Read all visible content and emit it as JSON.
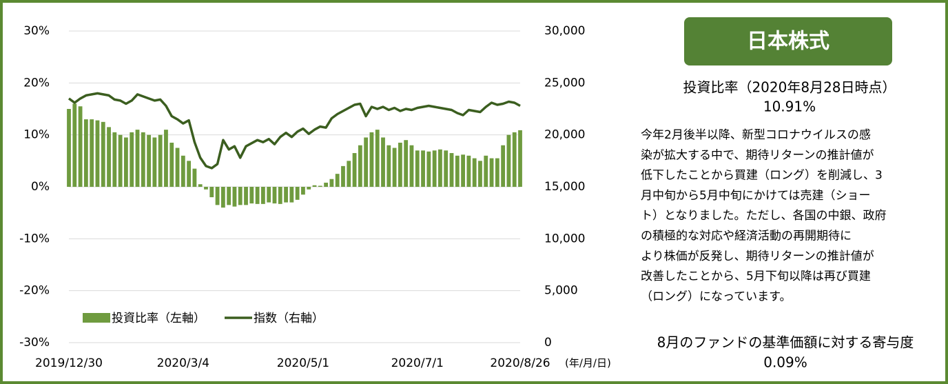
{
  "chart_data": {
    "type": "bar_line",
    "categories": [
      "2019/12/30",
      null,
      null,
      null,
      null,
      null,
      null,
      null,
      null,
      null,
      null,
      null,
      null,
      null,
      null,
      null,
      null,
      null,
      null,
      null,
      "2020/3/4",
      null,
      null,
      null,
      null,
      null,
      null,
      null,
      null,
      null,
      null,
      null,
      null,
      null,
      null,
      null,
      null,
      null,
      null,
      null,
      null,
      "2020/5/1",
      null,
      null,
      null,
      null,
      null,
      null,
      null,
      null,
      null,
      null,
      null,
      null,
      null,
      null,
      null,
      null,
      null,
      null,
      null,
      "2020/7/1",
      null,
      null,
      null,
      null,
      null,
      null,
      null,
      null,
      null,
      null,
      null,
      null,
      null,
      null,
      null,
      null,
      null,
      "2020/8/26"
    ],
    "x_label": "(年/月/日)",
    "series": [
      {
        "name": "投資比率（左軸）",
        "color": "#6f9b3f",
        "type": "bar",
        "axis": "y",
        "values": [
          15,
          16,
          15.5,
          13,
          13,
          12.8,
          12.5,
          11.5,
          10.5,
          10,
          9.5,
          10.5,
          11,
          10.5,
          10,
          9.5,
          10,
          11,
          8.5,
          7.5,
          6,
          5,
          3.5,
          0.5,
          -0.5,
          -2,
          -3.5,
          -4,
          -3.5,
          -3.8,
          -3.5,
          -3.5,
          -3.2,
          -3.3,
          -3.3,
          -3,
          -3.2,
          -3.3,
          -3,
          -3,
          -2.5,
          -1.5,
          -0.5,
          0.3,
          0.2,
          0.8,
          1.5,
          2.5,
          4,
          5,
          6.5,
          8,
          9.5,
          10.5,
          11,
          9.5,
          8,
          7.5,
          8.5,
          9,
          8,
          7,
          7,
          6.8,
          7,
          7.2,
          7,
          6.5,
          6,
          6.2,
          6,
          5.5,
          5,
          6,
          5.5,
          5.5,
          8,
          10,
          10.5,
          10.9
        ]
      },
      {
        "name": "指数（右軸）",
        "color": "#3b5e1f",
        "type": "line",
        "axis": "y2",
        "values": [
          23500,
          23100,
          23500,
          23800,
          23900,
          24000,
          23900,
          23800,
          23400,
          23300,
          23000,
          23300,
          23900,
          23700,
          23500,
          23300,
          23400,
          22800,
          21800,
          21500,
          21100,
          21400,
          19300,
          17800,
          17000,
          16800,
          17200,
          19500,
          18600,
          18900,
          17800,
          18900,
          19200,
          19500,
          19300,
          19600,
          19100,
          19800,
          20200,
          19800,
          20300,
          20600,
          20100,
          20500,
          20800,
          20700,
          21600,
          22000,
          22300,
          22600,
          22900,
          23000,
          21800,
          22700,
          22500,
          22700,
          22400,
          22600,
          22300,
          22500,
          22400,
          22600,
          22700,
          22800,
          22700,
          22600,
          22500,
          22400,
          22100,
          21900,
          22400,
          22300,
          22200,
          22700,
          23100,
          22900,
          23000,
          23200,
          23100,
          22800
        ]
      }
    ],
    "ylim": [
      -30,
      30
    ],
    "yticks": [
      {
        "value": -30,
        "label": "-30%"
      },
      {
        "value": -20,
        "label": "-20%"
      },
      {
        "value": -10,
        "label": "-10%"
      },
      {
        "value": 0,
        "label": "0%"
      },
      {
        "value": 10,
        "label": "10%"
      },
      {
        "value": 20,
        "label": "20%"
      },
      {
        "value": 30,
        "label": "30%"
      }
    ],
    "y2lim": [
      0,
      30000
    ],
    "y2ticks": [
      0,
      {
        "value": 5000,
        "label": "5,000"
      },
      {
        "value": 10000,
        "label": "10,000"
      },
      {
        "value": 15000,
        "label": "15,000"
      },
      {
        "value": 20000,
        "label": "20,000"
      },
      {
        "value": 25000,
        "label": "25,000"
      },
      {
        "value": 30000,
        "label": "30,000"
      }
    ],
    "grid": true
  },
  "panel": {
    "title": "日本株式",
    "ratio_label": "投資比率（2020年8月28日時点）",
    "ratio_value": "10.91%",
    "body_lines": [
      "今年2月後半以降、新型コロナウイルスの感",
      "染が拡大する中で、期待リターンの推計値が",
      "低下したことから買建（ロング）を削減し、3",
      "月中旬から5月中旬にかけては売建（ショー",
      "ト）となりました。ただし、各国の中銀、政府",
      "の積極的な対応や経済活動の再開期待に",
      "より株価が反発し、期待リターンの推計値が",
      "改善したことから、5月下旬以降は再び買建",
      "（ロング）になっています。"
    ],
    "contribution_label": "8月のファンドの基準価額に対する寄与度",
    "contribution_value": "0.09%"
  }
}
